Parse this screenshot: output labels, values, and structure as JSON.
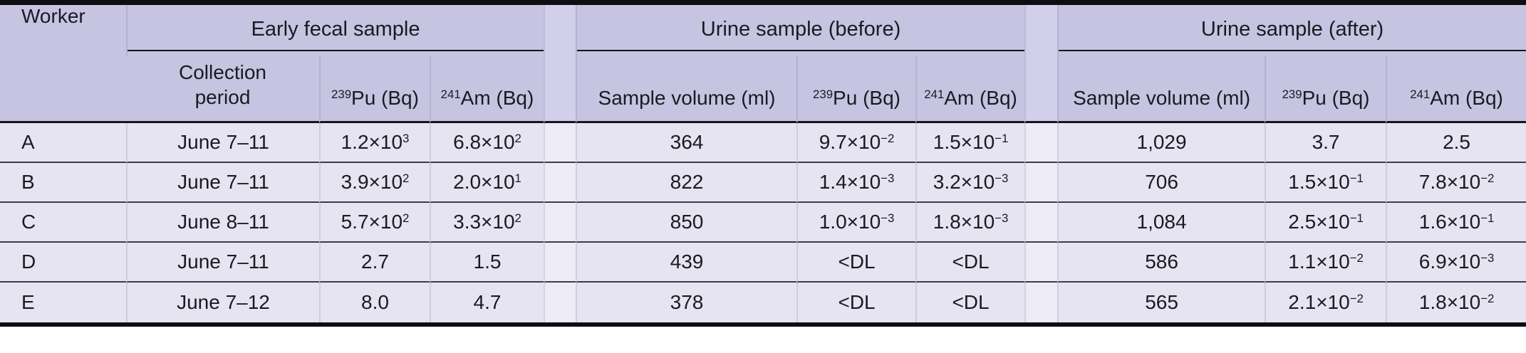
{
  "table": {
    "groups": [
      {
        "label": "Early fecal sample"
      },
      {
        "label": "Urine sample (before)"
      },
      {
        "label": "Urine sample (after)"
      }
    ],
    "columns": [
      "Worker",
      "Collection period",
      "^{239}Pu (Bq)",
      "^{241}Am (Bq)",
      "Sample volume (ml)",
      "^{239}Pu (Bq)",
      "^{241}Am (Bq)",
      "Sample volume (ml)",
      "^{239}Pu (Bq)",
      "^{241}Am (Bq)"
    ],
    "rows": [
      [
        "A",
        "June 7–11",
        "1.2×10^{3}",
        "6.8×10^{2}",
        "364",
        "9.7×10^{−2}",
        "1.5×10^{−1}",
        "1,029",
        "3.7",
        "2.5"
      ],
      [
        "B",
        "June 7–11",
        "3.9×10^{2}",
        "2.0×10^{1}",
        "822",
        "1.4×10^{−3}",
        "3.2×10^{−3}",
        "706",
        "1.5×10^{−1}",
        "7.8×10^{−2}"
      ],
      [
        "C",
        "June 8–11",
        "5.7×10^{2}",
        "3.3×10^{2}",
        "850",
        "1.0×10^{−3}",
        "1.8×10^{−3}",
        "1,084",
        "2.5×10^{−1}",
        "1.6×10^{−1}"
      ],
      [
        "D",
        "June 7–11",
        "2.7",
        "1.5",
        "439",
        "<DL",
        "<DL",
        "586",
        "1.1×10^{−2}",
        "6.9×10^{−3}"
      ],
      [
        "E",
        "June 7–12",
        "8.0",
        "4.7",
        "378",
        "<DL",
        "<DL",
        "565",
        "2.1×10^{−2}",
        "1.8×10^{−2}"
      ]
    ],
    "colors": {
      "header_bg": "#c6c4e1",
      "body_bg": "#e6e4f0",
      "gap_header_bg": "#d1cfe9",
      "gap_body_bg": "#edebf6",
      "rule": "#15151c",
      "frame": "#0d0d12",
      "row_line": "#3c3b47",
      "text": "#1a1a22"
    }
  }
}
